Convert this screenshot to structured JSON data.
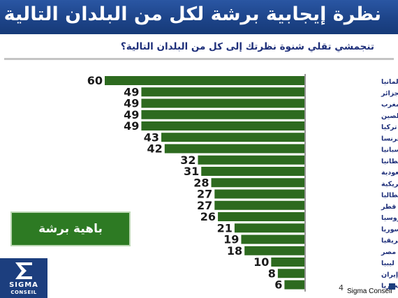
{
  "header": {
    "title": "نظرة إيجابية برشة لكل من البلدان التالية"
  },
  "question": "تنجمشي تقلي شنوة نظرتك إلى كل من البلدان التالية؟",
  "badge_label": "باهية برشة",
  "logo": {
    "line1": "SIGMA",
    "line2": "CONSEIL"
  },
  "page_number": "4",
  "footer_brand": "Sigma Conseil",
  "colors": {
    "header": "#1d4489",
    "bar": "#2d6a1f",
    "badge": "#2d7a23",
    "text": "#1e2f7a"
  },
  "chart_data": {
    "type": "bar",
    "orientation": "horizontal",
    "direction": "right-to-left",
    "categories": [
      "ألمانيا",
      "الجزائر",
      "المغرب",
      "الصين",
      "تركيا",
      "فرنسا",
      "اسبانيا",
      "بريطانيا",
      "السعودية",
      "الولايات المتحدة الأمريكية",
      "إيطاليا",
      "قطر",
      "روسيا",
      "سوريا",
      "جنوب افريقيا",
      "مصر",
      "ليبيا",
      "إيران",
      "نيجيريا"
    ],
    "values": [
      60,
      49,
      49,
      49,
      49,
      43,
      42,
      32,
      31,
      28,
      27,
      27,
      26,
      21,
      19,
      18,
      10,
      8,
      6
    ],
    "xlim": [
      0,
      60
    ],
    "grid": false,
    "legend": false
  }
}
